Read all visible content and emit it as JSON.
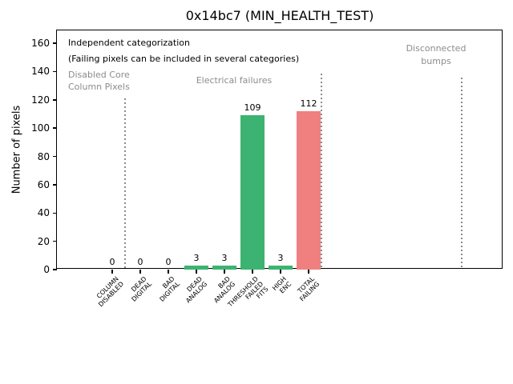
{
  "title": "0x14bc7 (MIN_HEALTH_TEST)",
  "colors": {
    "bar_green": "#3cb371",
    "bar_red": "#f08080",
    "gray_text": "#8c8c8c",
    "separator": "#8c8c8c",
    "text": "#000000",
    "background": "#ffffff"
  },
  "chart_data": {
    "type": "bar",
    "title": "0x14bc7 (MIN_HEALTH_TEST)",
    "xlabel": "",
    "ylabel": "Number of pixels",
    "ylim": [
      0,
      169
    ],
    "yticks": [
      0,
      20,
      40,
      60,
      80,
      100,
      120,
      140,
      160
    ],
    "grid": false,
    "legend": null,
    "categories": [
      "COLUMN\nDISABLED",
      "DEAD\nDIGITAL",
      "BAD\nDIGITAL",
      "DEAD\nANALOG",
      "BAD\nANALOG",
      "THRESHOLD\nFAILED\nFITS",
      "HIGH\nENC",
      "TOTAL\nFAILING"
    ],
    "values": [
      0,
      0,
      0,
      3,
      3,
      109,
      3,
      112
    ],
    "value_labels": [
      "0",
      "0",
      "0",
      "3",
      "3",
      "109",
      "3",
      "112"
    ],
    "bar_colors": [
      "#3cb371",
      "#3cb371",
      "#3cb371",
      "#3cb371",
      "#3cb371",
      "#3cb371",
      "#3cb371",
      "#f08080"
    ],
    "annotations": {
      "note_line1": "Independent categorization",
      "note_line2": "(Failing pixels can be included in several categories)",
      "section_disabled": "Disabled Core\nColumn Pixels",
      "section_electrical": "Electrical failures",
      "section_bumps": "Disconnected\nbumps"
    }
  }
}
